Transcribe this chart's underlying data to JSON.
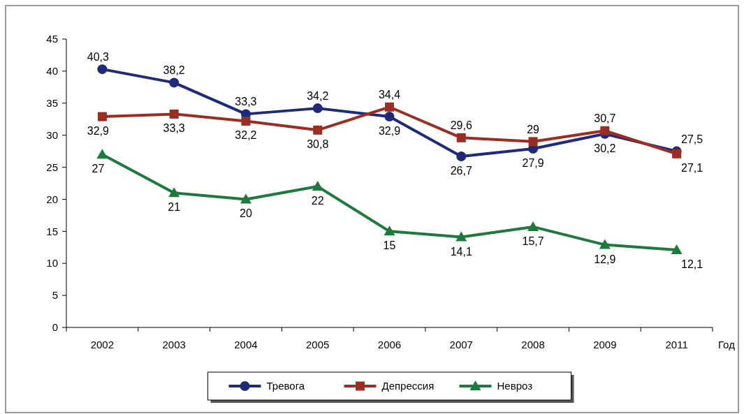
{
  "chart_data": {
    "type": "line",
    "xlabel": "Год",
    "categories": [
      "2002",
      "2003",
      "2004",
      "2005",
      "2006",
      "2007",
      "2008",
      "2009",
      "2011"
    ],
    "ylim": [
      0,
      45
    ],
    "yticks": [
      0,
      5,
      10,
      15,
      20,
      25,
      30,
      35,
      40,
      45
    ],
    "grid": false,
    "legend": "bottom",
    "line_style": "solid",
    "series": [
      {
        "name": "Тревога",
        "color": "#1f2a78",
        "marker": "circle",
        "values": [
          40.3,
          38.2,
          33.3,
          34.2,
          32.9,
          26.7,
          27.9,
          30.2,
          27.5
        ],
        "value_labels": [
          "40,3",
          "38,2",
          "33,3",
          "34,2",
          "32,9",
          "26,7",
          "27,9",
          "30,2",
          "27,5"
        ]
      },
      {
        "name": "Депрессия",
        "color": "#9a2e24",
        "marker": "square",
        "values": [
          32.9,
          33.3,
          32.2,
          30.8,
          34.4,
          29.6,
          29,
          30.7,
          27.1
        ],
        "value_labels": [
          "32,9",
          "33,3",
          "32,2",
          "30,8",
          "34,4",
          "29,6",
          "29",
          "30,7",
          "27,1"
        ]
      },
      {
        "name": "Невроз",
        "color": "#1d7a3c",
        "marker": "triangle",
        "values": [
          27,
          21,
          20,
          22,
          15,
          14.1,
          15.7,
          12.9,
          12.1
        ],
        "value_labels": [
          "27",
          "21",
          "20",
          "22",
          "15",
          "14,1",
          "15,7",
          "12,9",
          "12,1"
        ]
      }
    ]
  }
}
